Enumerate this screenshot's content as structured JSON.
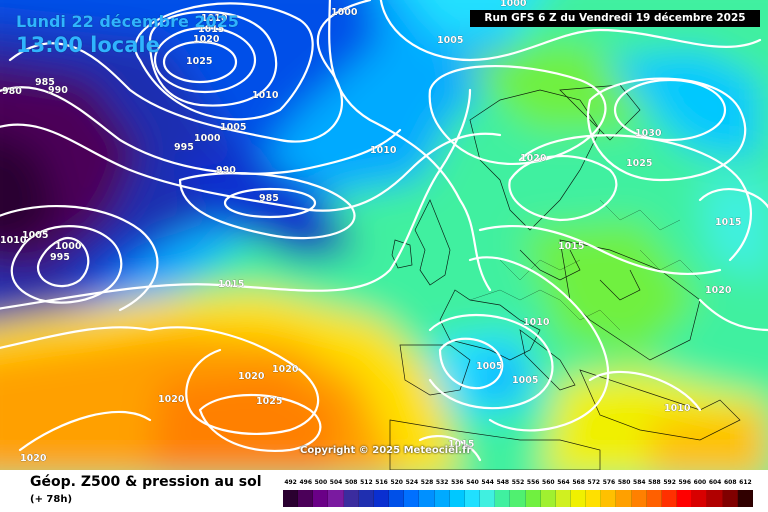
{
  "header": {
    "date": "Lundi 22 décembre 2025",
    "time": "13:00 locale",
    "run": "Run GFS 6 Z du Vendredi 19 décembre 2025"
  },
  "copyright": "Copyright © 2025 Meteociel.fr",
  "footer": {
    "title": "Géop. Z500 & pression au sol",
    "lead_time": "(+ 78h)"
  },
  "legend": {
    "unit_values": [
      "492",
      "496",
      "500",
      "504",
      "508",
      "512",
      "516",
      "520",
      "524",
      "528",
      "532",
      "536",
      "540",
      "544",
      "548",
      "552",
      "556",
      "560",
      "564",
      "568",
      "572",
      "576",
      "580",
      "584",
      "588",
      "592",
      "596",
      "600",
      "604",
      "608",
      "612"
    ],
    "colors": [
      "#2a0030",
      "#4b0059",
      "#6a0087",
      "#7a1aa0",
      "#3b2c9e",
      "#1f2fb0",
      "#0a2fd0",
      "#0050e8",
      "#0070ff",
      "#0090ff",
      "#00aaff",
      "#00c8ff",
      "#20e0ff",
      "#40f0e0",
      "#40f0a0",
      "#50f070",
      "#70f040",
      "#a0f030",
      "#d0f020",
      "#f0f000",
      "#ffe000",
      "#ffc000",
      "#ffa000",
      "#ff8000",
      "#ff6000",
      "#ff3000",
      "#ff0000",
      "#d80000",
      "#b00000",
      "#800000",
      "#300000"
    ]
  },
  "isobar_labels": [
    {
      "text": "1010"
    },
    {
      "text": "1015"
    },
    {
      "text": "1020"
    },
    {
      "text": "1025"
    },
    {
      "text": "1000"
    },
    {
      "text": "1005"
    },
    {
      "text": "1010"
    },
    {
      "text": "1005"
    },
    {
      "text": "1000"
    },
    {
      "text": "995"
    },
    {
      "text": "990"
    },
    {
      "text": "985"
    },
    {
      "text": "985"
    },
    {
      "text": "990"
    },
    {
      "text": "980"
    },
    {
      "text": "1010"
    },
    {
      "text": "1005"
    },
    {
      "text": "1000"
    },
    {
      "text": "995"
    },
    {
      "text": "1015"
    },
    {
      "text": "1010"
    },
    {
      "text": "1020"
    },
    {
      "text": "1030"
    },
    {
      "text": "1025"
    },
    {
      "text": "1015"
    },
    {
      "text": "1015"
    },
    {
      "text": "1020"
    },
    {
      "text": "1010"
    },
    {
      "text": "1005"
    },
    {
      "text": "1005"
    },
    {
      "text": "1010"
    },
    {
      "text": "1020"
    },
    {
      "text": "1020"
    },
    {
      "text": "1020"
    },
    {
      "text": "1025"
    },
    {
      "text": "1020"
    },
    {
      "text": "1015"
    },
    {
      "text": "1000"
    }
  ]
}
